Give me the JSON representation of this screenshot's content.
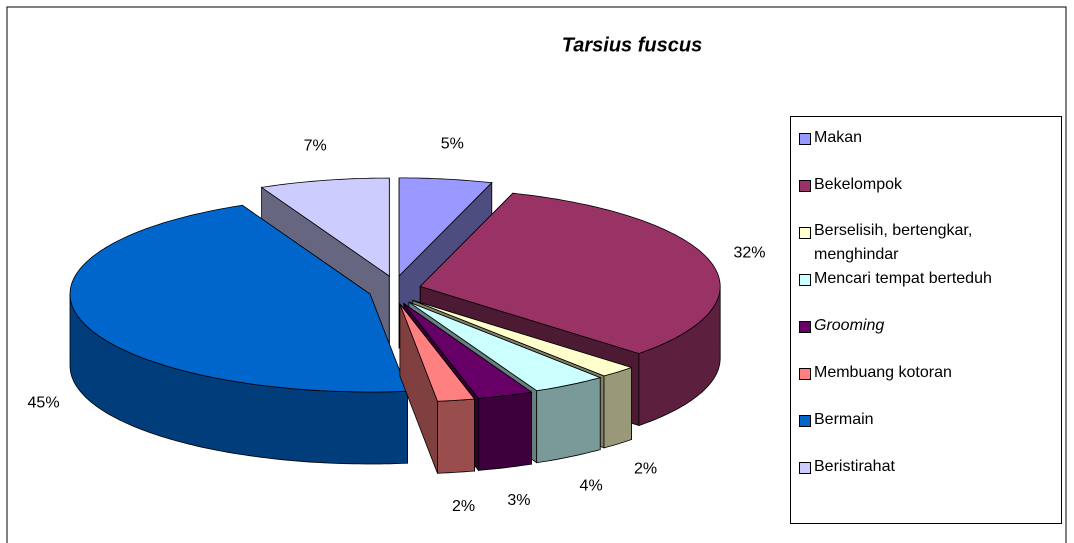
{
  "chart_data": {
    "type": "pie",
    "title": "Tarsius fuscus",
    "categories": [
      "Makan",
      "Bekelompok",
      "Berselisih, bertengkar, menghindar",
      "Mencari tempat berteduh",
      "Grooming",
      "Membuang kotoran",
      "Bermain",
      "Beristirahat"
    ],
    "values": [
      5,
      32,
      2,
      4,
      3,
      2,
      45,
      7
    ],
    "value_labels": [
      "5%",
      "32%",
      "2%",
      "4%",
      "3%",
      "2%",
      "45%",
      "7%"
    ],
    "colors": [
      "#9999ff",
      "#993366",
      "#ffffcc",
      "#ccffff",
      "#660066",
      "#ff8080",
      "#0066cc",
      "#ccccff"
    ],
    "legend": "right"
  }
}
